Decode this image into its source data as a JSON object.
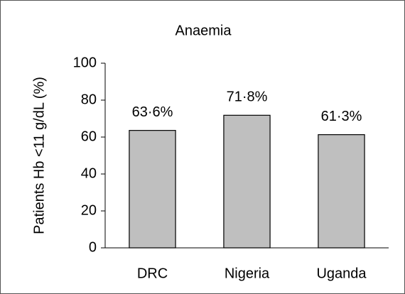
{
  "chart_data": {
    "type": "bar",
    "title": "Anaemia",
    "y_label": "Patients Hb <11 g/dL (%)",
    "categories": [
      "DRC",
      "Nigeria",
      "Uganda"
    ],
    "values": [
      63.6,
      71.8,
      61.3
    ],
    "value_labels": [
      "63·6%",
      "71·8%",
      "61·3%"
    ],
    "color": "#bfbfbf",
    "ylim": [
      0,
      100
    ],
    "yticks": [
      0,
      20,
      40,
      60,
      80,
      100
    ],
    "grid": false
  }
}
